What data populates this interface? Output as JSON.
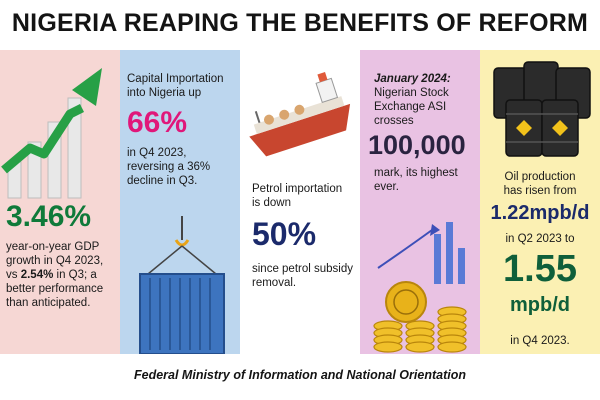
{
  "title": "NIGERIA REAPING THE BENEFITS OF REFORM",
  "panels": {
    "gdp": {
      "value": "3.46%",
      "line1": "year-on-year GDP",
      "line2": "growth in Q4 2023,",
      "line3_pre": "vs ",
      "line3_value": "2.54%",
      "line3_post": " in Q3; a",
      "line4": "better performance",
      "line5": "than anticipated."
    },
    "capital": {
      "line1": "Capital Importation",
      "line2": "into Nigeria up",
      "value": "66%",
      "line3": "in Q4 2023,",
      "line4": "reversing a 36%",
      "line5": "decline in Q3."
    },
    "petrol": {
      "line1": "Petrol importation",
      "line2": "is down",
      "value": "50%",
      "line3": "since petrol subsidy",
      "line4": "removal."
    },
    "stock": {
      "date": "January 2024:",
      "line1": "Nigerian Stock",
      "line2": "Exchange ASI",
      "line3": "crosses",
      "value": "100,000",
      "line4": "mark, its highest",
      "line5": "ever."
    },
    "oil": {
      "line1": "Oil production",
      "line2": "has risen from",
      "value1": "1.22mpb/d",
      "line3": "in Q2 2023 to",
      "value2": "1.55",
      "value2_unit": "mpb/d",
      "line4": "in Q4 2023."
    }
  },
  "footer": "Federal Ministry of Information and National Orientation",
  "colors": {
    "green": "#0f7a3a",
    "pink": "#e0177a",
    "navy": "#1b2a6b",
    "panel_pink": "#f6d7d4",
    "panel_blue": "#bcd6ee",
    "panel_purple": "#e9c2e3",
    "panel_yellow": "#fbf0b3"
  },
  "icons": [
    "rising-bar-chart-icon",
    "shipping-container-icon",
    "oil-tanker-ship-icon",
    "coins-growth-icon",
    "oil-barrels-icon"
  ]
}
